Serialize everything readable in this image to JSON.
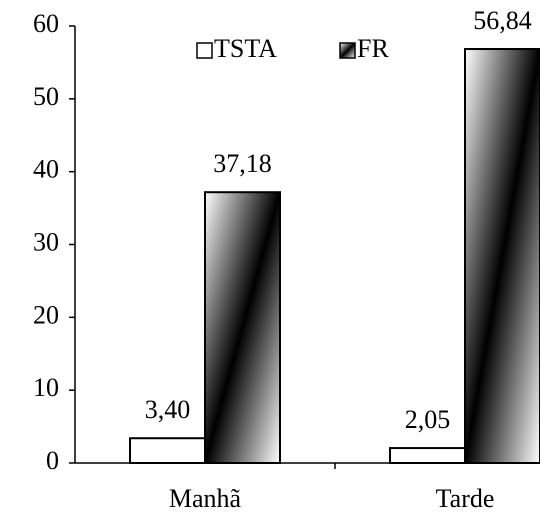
{
  "chart_data": {
    "type": "bar",
    "categories": [
      "Manhã",
      "Tarde"
    ],
    "series": [
      {
        "name": "TSTA",
        "color": "#ffffff",
        "values": [
          3.4,
          2.05
        ],
        "value_labels": [
          "3,40",
          "2,05"
        ]
      },
      {
        "name": "FR",
        "color": "#000000",
        "values": [
          37.18,
          56.84
        ],
        "value_labels": [
          "37,18",
          "56,84"
        ]
      }
    ],
    "ylim": [
      0,
      60
    ],
    "yticks": [
      0,
      10,
      20,
      30,
      40,
      50,
      60
    ],
    "grid": false,
    "legend": "top"
  }
}
